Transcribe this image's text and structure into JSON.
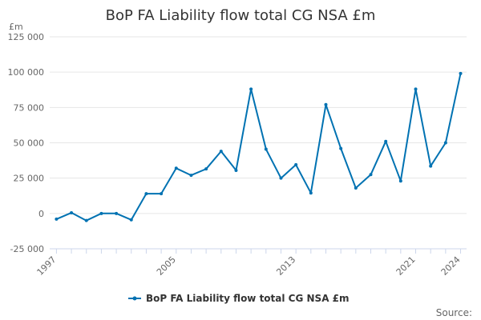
{
  "chart_data": {
    "type": "line",
    "title": "BoP FA Liability flow total CG NSA £m",
    "ylabel": "£m",
    "xlabel": "",
    "ylim": [
      -25000,
      125000
    ],
    "yticks": [
      125000,
      100000,
      75000,
      50000,
      25000,
      0,
      -25000
    ],
    "ytick_labels": [
      "125 000",
      "100 000",
      "75 000",
      "50 000",
      "25 000",
      "0",
      "-25 000"
    ],
    "xticks": [
      1997,
      2005,
      2013,
      2021,
      2024
    ],
    "series": [
      {
        "name": "BoP FA Liability flow total CG NSA £m",
        "color": "#0072b2",
        "x": [
          1997,
          1998,
          1999,
          2000,
          2001,
          2002,
          2003,
          2004,
          2005,
          2006,
          2007,
          2008,
          2009,
          2010,
          2011,
          2012,
          2013,
          2014,
          2015,
          2016,
          2017,
          2018,
          2019,
          2020,
          2021,
          2022,
          2023,
          2024
        ],
        "values": [
          -4000,
          500,
          -5000,
          0,
          0,
          -4500,
          14000,
          14000,
          32000,
          27000,
          31500,
          44000,
          30500,
          88000,
          45500,
          25000,
          34500,
          14500,
          77000,
          46000,
          18000,
          27500,
          51000,
          23000,
          88000,
          33500,
          50000,
          99000
        ]
      }
    ],
    "legend": {
      "label": "BoP FA Liability flow total CG NSA £m",
      "position": "bottom"
    },
    "source_label": "Source:"
  }
}
